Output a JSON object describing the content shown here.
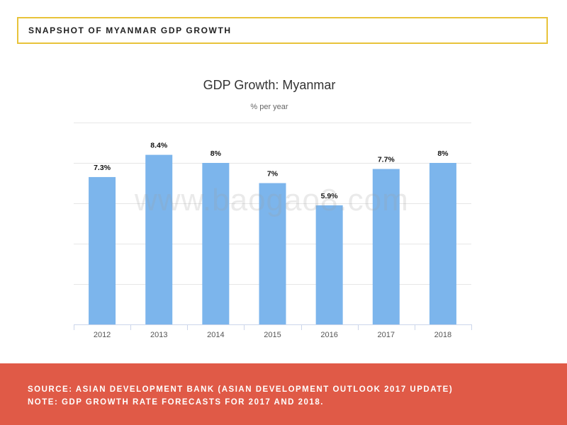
{
  "header": {
    "title": "SNAPSHOT OF MYANMAR GDP GROWTH"
  },
  "chart_data": {
    "type": "bar",
    "title": "GDP Growth: Myanmar",
    "subtitle": "% per year",
    "categories": [
      "2012",
      "2013",
      "2014",
      "2015",
      "2016",
      "2017",
      "2018"
    ],
    "values": [
      7.3,
      8.4,
      8,
      7,
      5.9,
      7.7,
      8
    ],
    "data_labels": [
      "7.3%",
      "8.4%",
      "8%",
      "7%",
      "5.9%",
      "7.7%",
      "8%"
    ],
    "ylim": [
      0,
      10
    ],
    "grid": true,
    "legend": "none",
    "bar_color": "#7cb5ec"
  },
  "watermark": "www.baogao8.com",
  "footer": {
    "source": "SOURCE: ASIAN DEVELOPMENT BANK (ASIAN DEVELOPMENT OUTLOOK 2017 UPDATE)",
    "note": "NOTE: GDP GROWTH RATE FORECASTS FOR 2017 AND 2018."
  },
  "colors": {
    "header_border": "#e8c33a",
    "footer_bg": "#e05a47"
  }
}
